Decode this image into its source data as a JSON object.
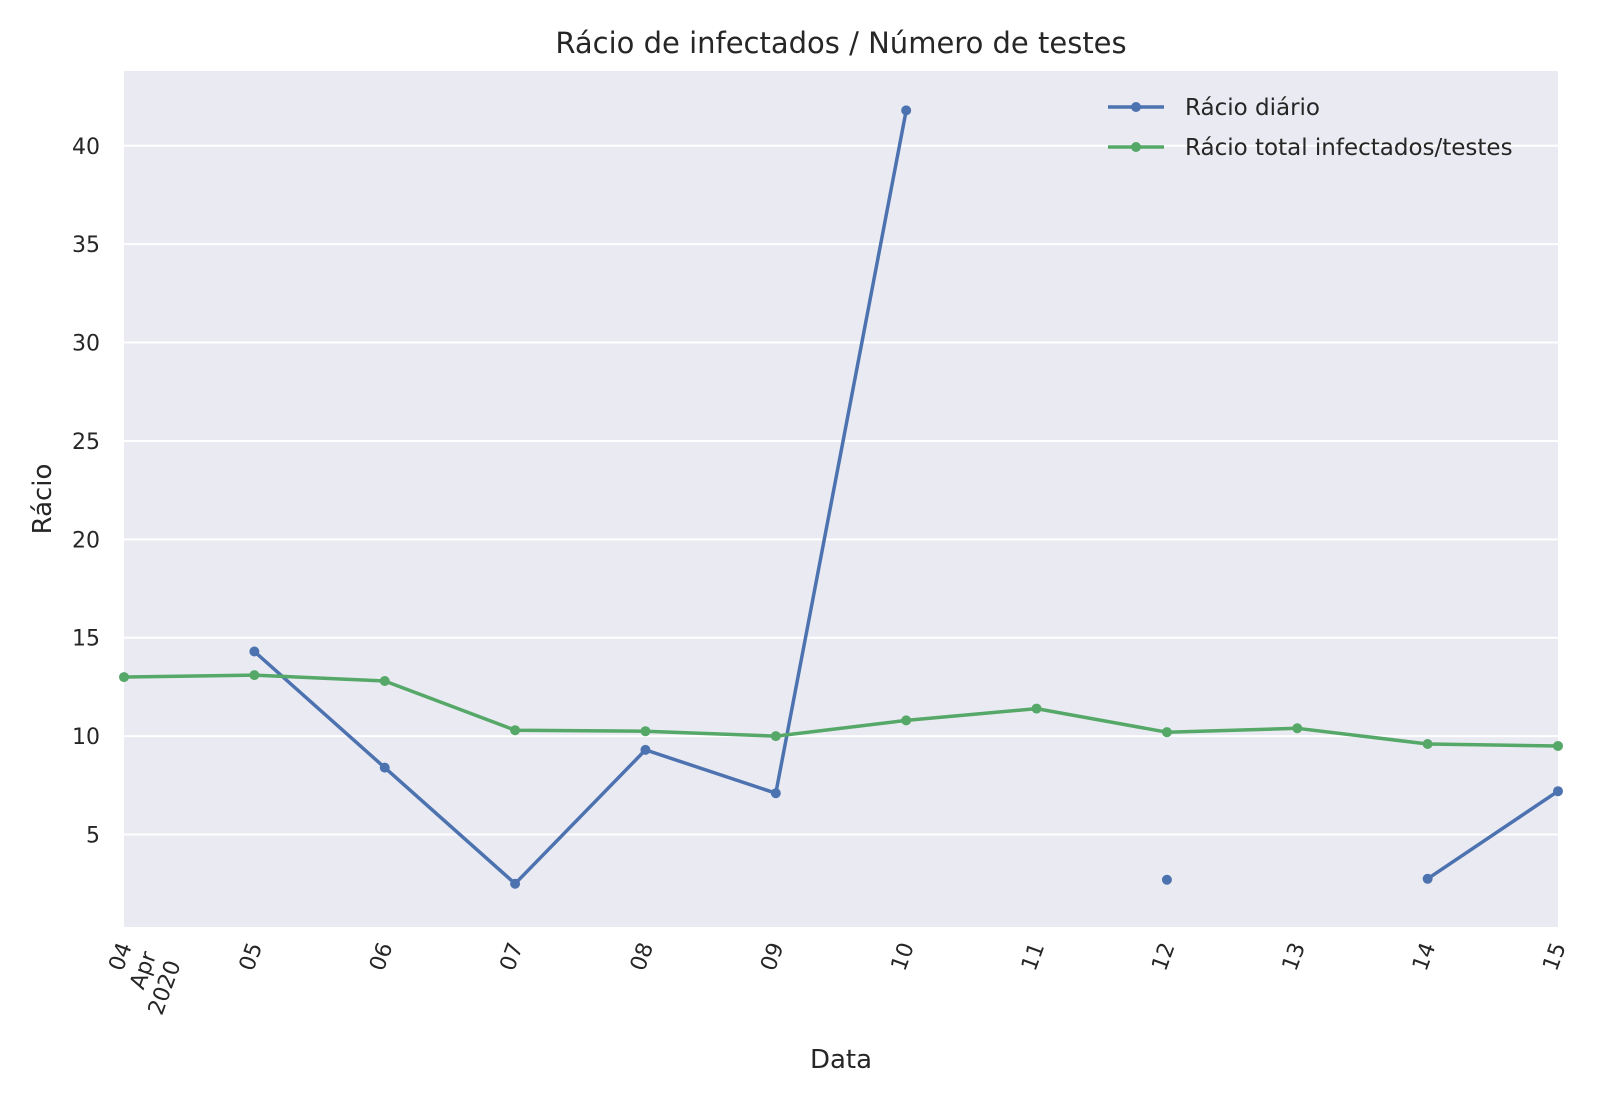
{
  "chart_data": {
    "type": "line",
    "title": "Rácio de infectados / Número de testes",
    "xlabel": "Data",
    "ylabel": "Rácio",
    "x": [
      "2020-04-04",
      "2020-04-05",
      "2020-04-06",
      "2020-04-07",
      "2020-04-08",
      "2020-04-09",
      "2020-04-10",
      "2020-04-11",
      "2020-04-12",
      "2020-04-13",
      "2020-04-14",
      "2020-04-15"
    ],
    "x_tick_labels": [
      [
        "04",
        "Apr",
        "2020"
      ],
      [
        "05"
      ],
      [
        "06"
      ],
      [
        "07"
      ],
      [
        "08"
      ],
      [
        "09"
      ],
      [
        "10"
      ],
      [
        "11"
      ],
      [
        "12"
      ],
      [
        "13"
      ],
      [
        "14"
      ],
      [
        "15"
      ]
    ],
    "ylim": [
      0.3,
      43.8
    ],
    "y_ticks": [
      5,
      10,
      15,
      20,
      25,
      30,
      35,
      40
    ],
    "grid": true,
    "legend_position": "top-right",
    "background": "#eaeaf2",
    "series": [
      {
        "name": "Rácio diário",
        "color": "#4c72b0",
        "values": [
          null,
          14.3,
          8.4,
          2.5,
          9.3,
          7.1,
          41.8,
          null,
          2.7,
          null,
          2.75,
          7.2
        ]
      },
      {
        "name": "Rácio total infectados/testes",
        "color": "#55a868",
        "values": [
          13.0,
          13.1,
          12.8,
          10.3,
          10.25,
          10.0,
          10.8,
          11.4,
          10.2,
          10.4,
          9.6,
          9.5
        ]
      }
    ]
  }
}
